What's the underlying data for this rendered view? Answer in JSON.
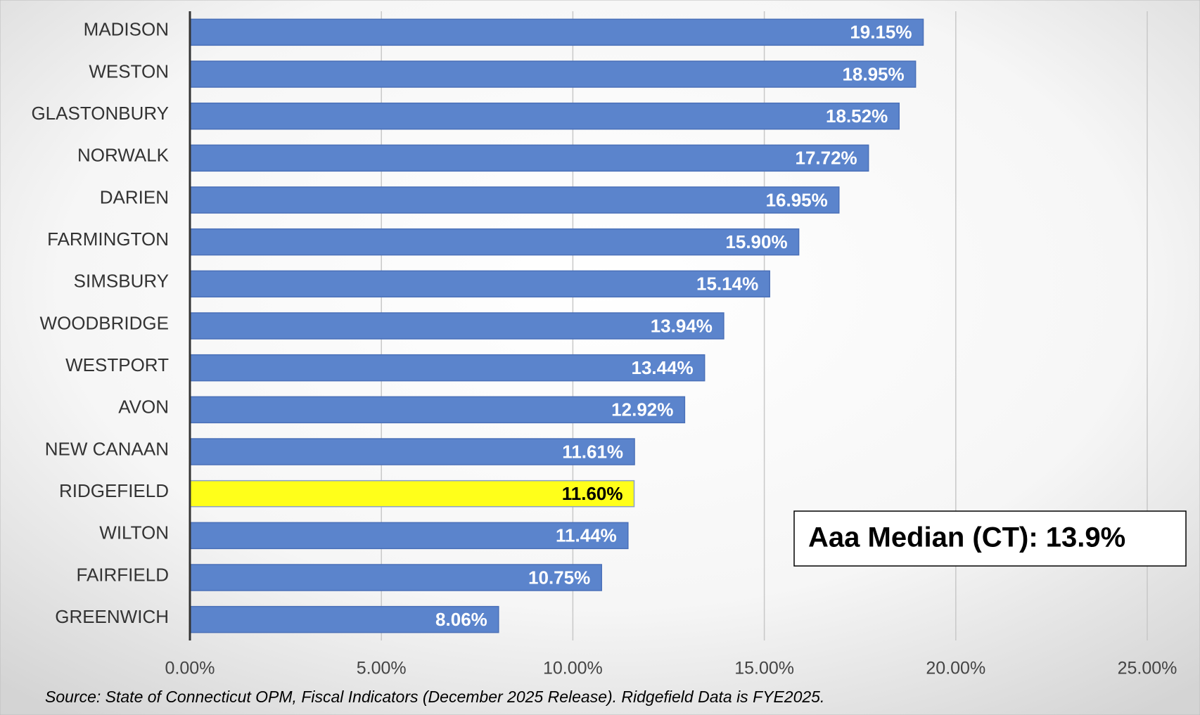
{
  "chart_data": {
    "type": "hbar",
    "categories": [
      "MADISON",
      "WESTON",
      "GLASTONBURY",
      "NORWALK",
      "DARIEN",
      "FARMINGTON",
      "SIMSBURY",
      "WOODBRIDGE",
      "WESTPORT",
      "AVON",
      "NEW CANAAN",
      "RIDGEFIELD",
      "WILTON",
      "FAIRFIELD",
      "GREENWICH"
    ],
    "values": [
      19.15,
      18.95,
      18.52,
      17.72,
      16.95,
      15.9,
      15.14,
      13.94,
      13.44,
      12.92,
      11.61,
      11.6,
      11.44,
      10.75,
      8.06
    ],
    "value_labels": [
      "19.15%",
      "18.95%",
      "18.52%",
      "17.72%",
      "16.95%",
      "15.90%",
      "15.14%",
      "13.94%",
      "13.44%",
      "12.92%",
      "11.61%",
      "11.60%",
      "11.44%",
      "10.75%",
      "8.06%"
    ],
    "colors": [
      "#5b84cc",
      "#5b84cc",
      "#5b84cc",
      "#5b84cc",
      "#5b84cc",
      "#5b84cc",
      "#5b84cc",
      "#5b84cc",
      "#5b84cc",
      "#5b84cc",
      "#5b84cc",
      "#ffff1a",
      "#5b84cc",
      "#5b84cc",
      "#5b84cc"
    ],
    "xlim": [
      0,
      25
    ],
    "xticks": [
      {
        "value": 0,
        "label": "0.00%"
      },
      {
        "value": 5,
        "label": "5.00%"
      },
      {
        "value": 10,
        "label": "10.00%"
      },
      {
        "value": 15,
        "label": "15.00%"
      },
      {
        "value": 20,
        "label": "20.00%"
      },
      {
        "value": 25,
        "label": "25.00%"
      }
    ],
    "grid": true,
    "annotation": "Aaa Median (CT): 13.9%",
    "source": "Source: State of Connecticut OPM, Fiscal Indicators (December 2025 Release). Ridgefield Data is FYE2025."
  }
}
